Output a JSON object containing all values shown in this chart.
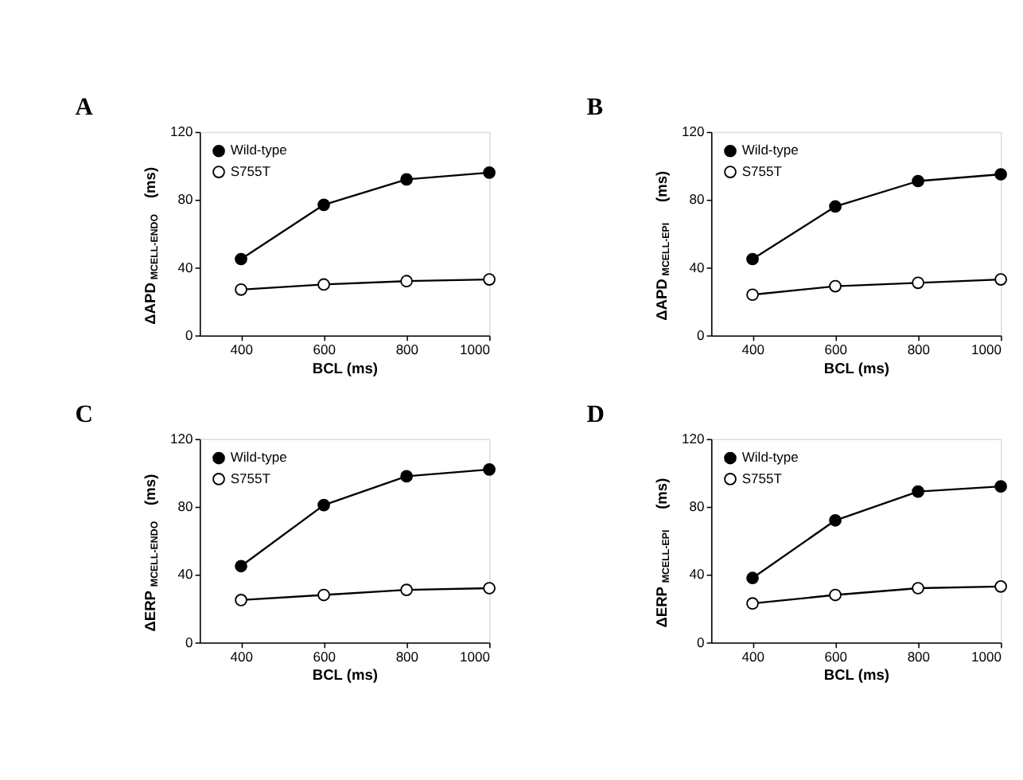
{
  "chart_data": [
    {
      "type": "line",
      "title": "A",
      "xlabel": "BCL (ms)",
      "ylabel": "ΔAPD$_{MCELL-ENDO}$ (ms)",
      "x": [
        400,
        600,
        800,
        1000
      ],
      "xlim": [
        300,
        1000
      ],
      "xticks": [
        400,
        600,
        800,
        1000
      ],
      "ylim": [
        0,
        120
      ],
      "yticks": [
        0,
        40,
        80,
        120
      ],
      "grid": false,
      "legend": "top left",
      "marker": "circle",
      "line_style": "solid",
      "series": [
        {
          "name": "Wild-type",
          "color": "#000000",
          "values": [
            45,
            77,
            92,
            96
          ]
        },
        {
          "name": "S755T",
          "color": "#ffffff",
          "values": [
            27,
            30,
            32,
            33
          ]
        }
      ]
    },
    {
      "type": "line",
      "title": "B",
      "xlabel": "BCL (ms)",
      "ylabel": "ΔAPD$_{MCELL-EPI}$ (ms)",
      "x": [
        400,
        600,
        800,
        1000
      ],
      "xlim": [
        300,
        1000
      ],
      "xticks": [
        400,
        600,
        800,
        1000
      ],
      "ylim": [
        0,
        120
      ],
      "yticks": [
        0,
        40,
        80,
        120
      ],
      "grid": false,
      "legend": "top left",
      "marker": "circle",
      "line_style": "solid",
      "series": [
        {
          "name": "Wild-type",
          "color": "#000000",
          "values": [
            45,
            76,
            91,
            95
          ]
        },
        {
          "name": "S755T",
          "color": "#ffffff",
          "values": [
            24,
            29,
            31,
            33
          ]
        }
      ]
    },
    {
      "type": "line",
      "title": "C",
      "xlabel": "BCL (ms)",
      "ylabel": "ΔERP$_{MCELL-ENDO}$ (ms)",
      "x": [
        400,
        600,
        800,
        1000
      ],
      "xlim": [
        300,
        1000
      ],
      "xticks": [
        400,
        600,
        800,
        1000
      ],
      "ylim": [
        0,
        120
      ],
      "yticks": [
        0,
        40,
        80,
        120
      ],
      "grid": false,
      "legend": "top left",
      "marker": "circle",
      "line_style": "solid",
      "series": [
        {
          "name": "Wild-type",
          "color": "#000000",
          "values": [
            45,
            81,
            98,
            102
          ]
        },
        {
          "name": "S755T",
          "color": "#ffffff",
          "values": [
            25,
            28,
            31,
            32
          ]
        }
      ]
    },
    {
      "type": "line",
      "title": "D",
      "xlabel": "BCL (ms)",
      "ylabel": "ΔERP$_{MCELL-EPI}$ (ms)",
      "x": [
        400,
        600,
        800,
        1000
      ],
      "xlim": [
        300,
        1000
      ],
      "xticks": [
        400,
        600,
        800,
        1000
      ],
      "ylim": [
        0,
        120
      ],
      "yticks": [
        0,
        40,
        80,
        120
      ],
      "grid": false,
      "legend": "top left",
      "marker": "circle",
      "line_style": "solid",
      "series": [
        {
          "name": "Wild-type",
          "color": "#000000",
          "values": [
            38,
            72,
            89,
            92
          ]
        },
        {
          "name": "S755T",
          "color": "#ffffff",
          "values": [
            23,
            28,
            32,
            33
          ]
        }
      ]
    }
  ]
}
